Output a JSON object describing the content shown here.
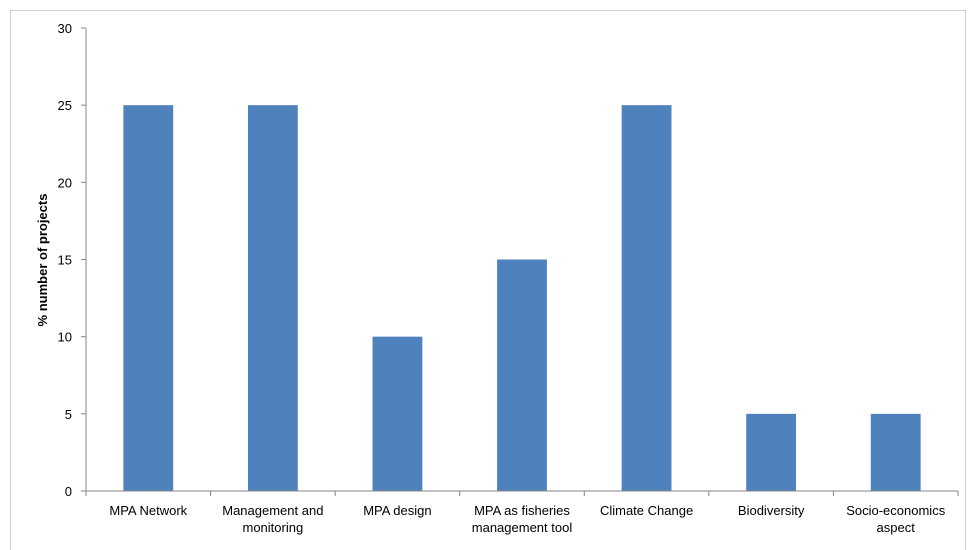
{
  "chart_data": {
    "type": "bar",
    "categories": [
      [
        "MPA Network"
      ],
      [
        "Management and",
        "monitoring"
      ],
      [
        "MPA design"
      ],
      [
        "MPA as fisheries",
        "management tool"
      ],
      [
        "Climate Change"
      ],
      [
        "Biodiversity"
      ],
      [
        "Socio-economics",
        "aspect"
      ]
    ],
    "values": [
      25,
      25,
      10,
      15,
      25,
      5,
      5
    ],
    "title": "",
    "xlabel": "",
    "ylabel": "% number of projects",
    "ylim": [
      0,
      30
    ],
    "yticks": [
      "0",
      "5",
      "10",
      "15",
      "20",
      "25",
      "30"
    ],
    "grid": false,
    "legend": "none",
    "bar_color": "#4f81bd"
  }
}
